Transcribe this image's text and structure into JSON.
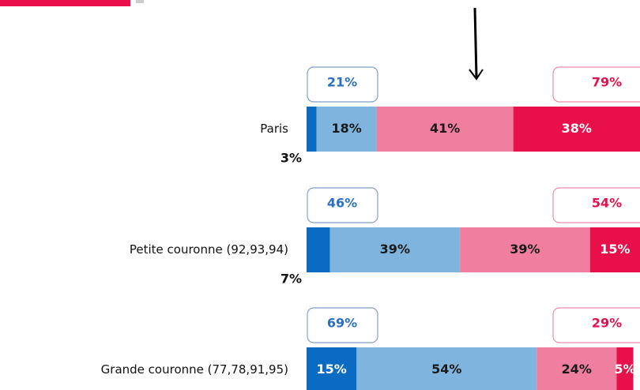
{
  "chart_data": {
    "type": "bar",
    "orientation": "horizontal",
    "stacked": true,
    "categories": [
      "Paris",
      "Petite couronne (92,93,94)",
      "Grande couronne (77,78,91,95)"
    ],
    "xlim": [
      0,
      100
    ],
    "series": [
      {
        "color": "#0b6bc3",
        "label_color": "#ffffff",
        "values": [
          3,
          7,
          15
        ],
        "value_labels": [
          "3%",
          "7%",
          "15%"
        ]
      },
      {
        "color": "#7fb4df",
        "label_color": "#1a1a1a",
        "values": [
          18,
          39,
          54
        ],
        "value_labels": [
          "18%",
          "39%",
          "54%"
        ]
      },
      {
        "color": "#f07f9f",
        "label_color": "#1a1a1a",
        "values": [
          41,
          39,
          24
        ],
        "value_labels": [
          "41%",
          "39%",
          "24%"
        ]
      },
      {
        "color": "#e8104a",
        "label_color": "#ffffff",
        "values": [
          38,
          15,
          5
        ],
        "value_labels": [
          "38%",
          "15%",
          "5%"
        ]
      }
    ],
    "totals_left": {
      "color": "#2b6fc1",
      "values": [
        21,
        46,
        69
      ],
      "value_labels": [
        "21%",
        "46%",
        "69%"
      ]
    },
    "totals_right": {
      "color": "#e0124b",
      "values": [
        79,
        54,
        29
      ],
      "value_labels": [
        "79%",
        "54%",
        "29%"
      ]
    }
  }
}
